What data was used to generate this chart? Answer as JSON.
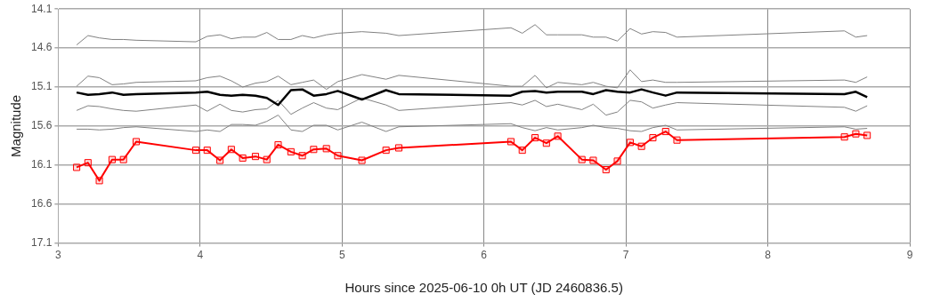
{
  "chart_data": {
    "type": "line",
    "xlabel": "Hours since 2025-06-10 0h UT (JD 2460836.5)",
    "ylabel": "Magnitude",
    "x": [
      3.13,
      3.21,
      3.29,
      3.38,
      3.46,
      3.55,
      3.97,
      4.05,
      4.14,
      4.22,
      4.3,
      4.39,
      4.47,
      4.55,
      4.64,
      4.72,
      4.8,
      4.89,
      4.97,
      5.14,
      5.31,
      5.4,
      6.19,
      6.27,
      6.36,
      6.44,
      6.52,
      6.69,
      6.77,
      6.86,
      6.94,
      7.03,
      7.11,
      7.19,
      7.28,
      7.36,
      8.54,
      8.62,
      8.7
    ],
    "series": [
      {
        "color": "#808080",
        "marker": "none",
        "values": [
          14.56,
          14.44,
          14.47,
          14.49,
          14.49,
          14.5,
          14.52,
          14.45,
          14.43,
          14.48,
          14.46,
          14.46,
          14.4,
          14.49,
          14.49,
          14.44,
          14.47,
          14.43,
          14.41,
          14.39,
          14.41,
          14.44,
          14.34,
          14.41,
          14.3,
          14.43,
          14.43,
          14.43,
          14.46,
          14.46,
          14.51,
          14.35,
          14.42,
          14.39,
          14.4,
          14.46,
          14.38,
          14.46,
          14.44
        ]
      },
      {
        "color": "#808080",
        "marker": "none",
        "values": [
          15.09,
          14.96,
          14.98,
          15.07,
          15.06,
          15.04,
          15.02,
          14.98,
          14.96,
          15.02,
          15.1,
          15.05,
          15.03,
          14.96,
          15.07,
          15.04,
          15.01,
          15.13,
          15.03,
          14.94,
          15.0,
          14.95,
          15.09,
          15.09,
          14.95,
          15.11,
          15.04,
          15.07,
          15.04,
          15.09,
          15.11,
          14.88,
          15.03,
          15.01,
          15.04,
          15.04,
          15.01,
          15.04,
          14.97
        ]
      },
      {
        "color": "#000000",
        "marker": "none",
        "values": [
          15.17,
          15.2,
          15.19,
          15.17,
          15.2,
          15.19,
          15.17,
          15.16,
          15.2,
          15.21,
          15.2,
          15.21,
          15.24,
          15.33,
          15.14,
          15.13,
          15.21,
          15.19,
          15.15,
          15.26,
          15.14,
          15.19,
          15.21,
          15.16,
          15.15,
          15.17,
          15.16,
          15.16,
          15.19,
          15.14,
          15.16,
          15.17,
          15.13,
          15.17,
          15.21,
          15.17,
          15.19,
          15.16,
          15.23
        ]
      },
      {
        "color": "#808080",
        "marker": "none",
        "values": [
          15.4,
          15.34,
          15.35,
          15.38,
          15.4,
          15.41,
          15.33,
          15.41,
          15.32,
          15.4,
          15.42,
          15.39,
          15.38,
          15.27,
          15.45,
          15.37,
          15.3,
          15.37,
          15.39,
          15.24,
          15.33,
          15.4,
          15.3,
          15.33,
          15.27,
          15.35,
          15.32,
          15.39,
          15.32,
          15.46,
          15.42,
          15.27,
          15.29,
          15.37,
          15.33,
          15.3,
          15.36,
          15.41,
          15.34
        ]
      },
      {
        "color": "#808080",
        "marker": "none",
        "values": [
          15.64,
          15.64,
          15.65,
          15.64,
          15.62,
          15.61,
          15.67,
          15.65,
          15.67,
          15.58,
          15.58,
          15.59,
          15.54,
          15.46,
          15.65,
          15.67,
          15.59,
          15.59,
          15.65,
          15.55,
          15.67,
          15.61,
          15.57,
          15.62,
          15.66,
          15.62,
          15.65,
          15.62,
          15.59,
          15.62,
          15.63,
          15.66,
          15.67,
          15.62,
          15.59,
          15.65,
          15.61,
          15.64,
          15.63
        ]
      },
      {
        "color": "#ff0000",
        "values": [
          16.13,
          16.07,
          16.3,
          16.03,
          16.03,
          15.8,
          15.91,
          15.91,
          16.04,
          15.9,
          16.01,
          15.99,
          16.03,
          15.84,
          15.93,
          15.98,
          15.9,
          15.89,
          15.98,
          16.04,
          15.91,
          15.88,
          15.8,
          15.91,
          15.75,
          15.82,
          15.73,
          16.03,
          16.04,
          16.16,
          16.05,
          15.81,
          15.86,
          15.75,
          15.67,
          15.78,
          15.74,
          15.7,
          15.72
        ]
      }
    ],
    "xlim": [
      3,
      9
    ],
    "xticks": [
      3,
      4,
      5,
      6,
      7,
      8,
      9
    ],
    "ylim": [
      17.1,
      14.1
    ],
    "yticks": [
      14.1,
      14.6,
      15.1,
      15.6,
      16.1,
      16.6,
      17.1
    ],
    "grid": true,
    "legend": false,
    "marker": "square"
  }
}
